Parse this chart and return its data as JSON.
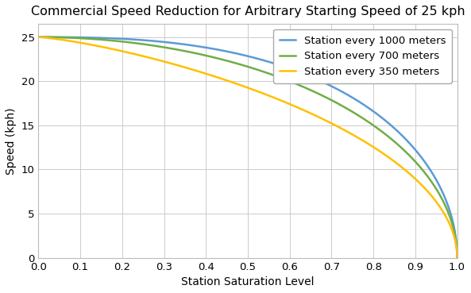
{
  "title": "Commercial Speed Reduction for Arbitrary Starting Speed of 25 kph",
  "xlabel": "Station Saturation Level",
  "ylabel": "Speed (kph)",
  "v0": 25,
  "xlim": [
    0,
    1.0
  ],
  "ylim": [
    0,
    26.5
  ],
  "yticks": [
    0,
    5,
    10,
    15,
    20,
    25
  ],
  "xticks": [
    0,
    0.1,
    0.2,
    0.3,
    0.4,
    0.5,
    0.6,
    0.7,
    0.8,
    0.9,
    1.0
  ],
  "series": [
    {
      "label": "Station every 1000 meters",
      "color": "#5B9BD5",
      "power_n": 2.6,
      "power_m": 0.5
    },
    {
      "label": "Station every 700 meters",
      "color": "#70AD47",
      "power_n": 2.0,
      "power_m": 0.5
    },
    {
      "label": "Station every 350 meters",
      "color": "#FFC000",
      "power_n": 1.3,
      "power_m": 0.5
    }
  ],
  "background_color": "#FFFFFF",
  "grid_color": "#CCCCCC",
  "title_fontsize": 11.5,
  "label_fontsize": 10,
  "tick_fontsize": 9.5,
  "legend_fontsize": 9.5,
  "linewidth": 1.8
}
